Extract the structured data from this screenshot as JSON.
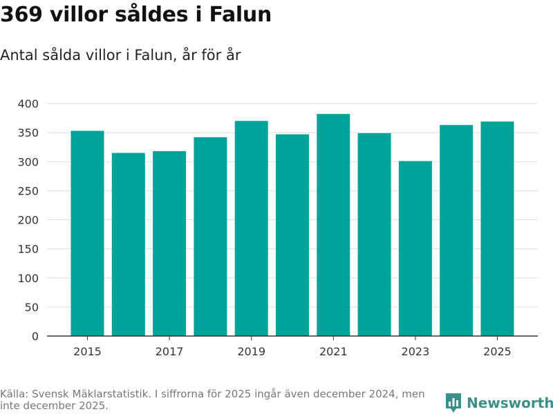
{
  "header": {
    "title": "369 villor såldes i Falun",
    "subtitle": "Antal sålda villor i Falun, år för år"
  },
  "chart_data": {
    "type": "bar",
    "categories": [
      "2015",
      "2016",
      "2017",
      "2018",
      "2019",
      "2020",
      "2021",
      "2022",
      "2023",
      "2024",
      "2025"
    ],
    "values": [
      353,
      315,
      318,
      342,
      370,
      347,
      382,
      349,
      301,
      363,
      369
    ],
    "x_tick_labels": [
      "2015",
      "2017",
      "2019",
      "2021",
      "2023",
      "2025"
    ],
    "y_ticks": [
      0,
      50,
      100,
      150,
      200,
      250,
      300,
      350,
      400
    ],
    "ylim": [
      0,
      400
    ],
    "xlabel": "",
    "ylabel": "",
    "grid": true,
    "bar_color": "#00a398",
    "grid_color": "#dddddd",
    "axis_color": "#333333"
  },
  "footer": {
    "source": "Källa: Svensk Mäklarstatistik. I siffrorna för 2025 ingår även december 2024, men inte december 2025.",
    "brand": "Newsworthy",
    "brand_color": "#3d8f8a"
  }
}
